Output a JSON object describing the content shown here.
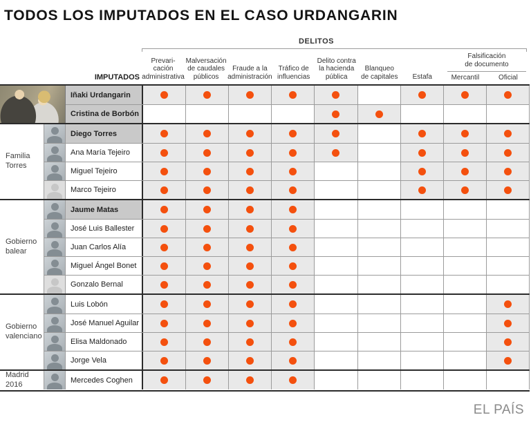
{
  "title": "TODOS LOS IMPUTADOS EN EL CASO URDANGARIN",
  "header": {
    "delitos_label": "DELITOS",
    "imputados_label": "IMPUTADOS",
    "columns": [
      {
        "label": "Prevari-\ncación\nadministrativa"
      },
      {
        "label": "Malversación\nde caudales\npúblicos"
      },
      {
        "label": "Fraude a la\nadministración"
      },
      {
        "label": "Tráfico de\ninfluencias"
      },
      {
        "label": "Delito contra\nla hacienda\npública"
      },
      {
        "label": "Blanqueo\nde capitales"
      },
      {
        "label": "Estafa"
      },
      {
        "group_label": "Falsificación\nde documento",
        "subs": [
          "Mercantil",
          "Oficial"
        ]
      }
    ]
  },
  "colors": {
    "dot": "#f4500e",
    "dotted_cell_bg": "#e9e9e9",
    "highlight_name_bg": "#c9c9c9"
  },
  "chart_data": {
    "type": "table",
    "title": "TODOS LOS IMPUTADOS EN EL CASO URDANGARIN",
    "legend_note": "orange dot = person charged with that crime; gray cell background marks charged cells",
    "columns": [
      "Prevaricación administrativa",
      "Malversación de caudales públicos",
      "Fraude a la administración",
      "Tráfico de influencias",
      "Delito contra la hacienda pública",
      "Blanqueo de capitales",
      "Estafa",
      "Falsificación de documento Mercantil",
      "Falsificación de documento Oficial"
    ],
    "groups": [
      {
        "label": "",
        "big_photo": true,
        "people": [
          {
            "name": "Iñaki Urdangarin",
            "highlight": true,
            "photo": true,
            "marks": [
              1,
              1,
              1,
              1,
              1,
              0,
              1,
              1,
              1
            ]
          },
          {
            "name": "Cristina de Borbón",
            "highlight": true,
            "photo": true,
            "marks": [
              0,
              0,
              0,
              0,
              1,
              1,
              0,
              0,
              0
            ]
          }
        ]
      },
      {
        "label": "Familia\nTorres",
        "people": [
          {
            "name": "Diego Torres",
            "highlight": true,
            "photo": true,
            "marks": [
              1,
              1,
              1,
              1,
              1,
              0,
              1,
              1,
              1
            ]
          },
          {
            "name": "Ana María Tejeiro",
            "highlight": false,
            "photo": true,
            "marks": [
              1,
              1,
              1,
              1,
              1,
              0,
              1,
              1,
              1
            ]
          },
          {
            "name": "Miguel Tejeiro",
            "highlight": false,
            "photo": true,
            "marks": [
              1,
              1,
              1,
              1,
              0,
              0,
              1,
              1,
              1
            ]
          },
          {
            "name": "Marco Tejeiro",
            "highlight": false,
            "photo": false,
            "marks": [
              1,
              1,
              1,
              1,
              0,
              0,
              1,
              1,
              1
            ]
          }
        ]
      },
      {
        "label": "Gobierno\nbalear",
        "people": [
          {
            "name": "Jaume Matas",
            "highlight": true,
            "photo": true,
            "marks": [
              1,
              1,
              1,
              1,
              0,
              0,
              0,
              0,
              0
            ]
          },
          {
            "name": "José Luis Ballester",
            "highlight": false,
            "photo": true,
            "marks": [
              1,
              1,
              1,
              1,
              0,
              0,
              0,
              0,
              0
            ]
          },
          {
            "name": "Juan Carlos Alía",
            "highlight": false,
            "photo": true,
            "marks": [
              1,
              1,
              1,
              1,
              0,
              0,
              0,
              0,
              0
            ]
          },
          {
            "name": "Miguel Ángel Bonet",
            "highlight": false,
            "photo": true,
            "marks": [
              1,
              1,
              1,
              1,
              0,
              0,
              0,
              0,
              0
            ]
          },
          {
            "name": "Gonzalo Bernal",
            "highlight": false,
            "photo": false,
            "marks": [
              1,
              1,
              1,
              1,
              0,
              0,
              0,
              0,
              0
            ]
          }
        ]
      },
      {
        "label": "Gobierno\nvalenciano",
        "people": [
          {
            "name": "Luis Lobón",
            "highlight": false,
            "photo": true,
            "marks": [
              1,
              1,
              1,
              1,
              0,
              0,
              0,
              0,
              1
            ]
          },
          {
            "name": "José Manuel Aguilar",
            "highlight": false,
            "photo": true,
            "marks": [
              1,
              1,
              1,
              1,
              0,
              0,
              0,
              0,
              1
            ]
          },
          {
            "name": "Elisa Maldonado",
            "highlight": false,
            "photo": true,
            "marks": [
              1,
              1,
              1,
              1,
              0,
              0,
              0,
              0,
              1
            ]
          },
          {
            "name": "Jorge Vela",
            "highlight": false,
            "photo": true,
            "marks": [
              1,
              1,
              1,
              1,
              0,
              0,
              0,
              0,
              1
            ]
          }
        ]
      },
      {
        "label": "Madrid\n2016",
        "people": [
          {
            "name": "Mercedes Coghen",
            "highlight": false,
            "photo": true,
            "marks": [
              1,
              1,
              1,
              1,
              0,
              0,
              0,
              0,
              0
            ]
          }
        ]
      }
    ]
  },
  "footer": {
    "credit": "EL PAÍS"
  }
}
